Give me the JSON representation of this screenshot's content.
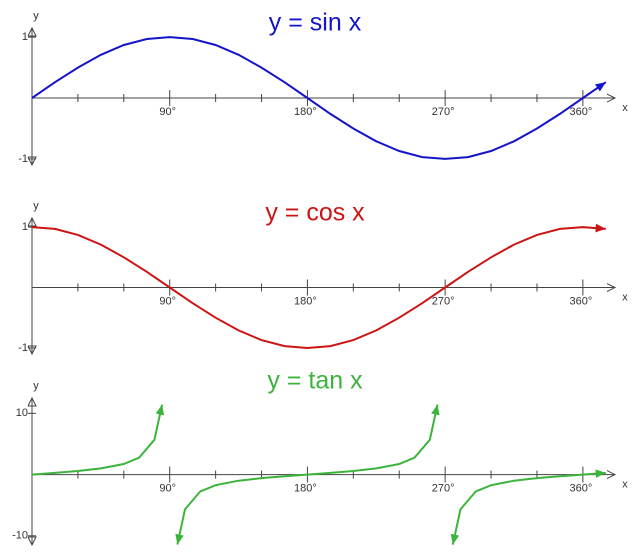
{
  "chart_data": [
    {
      "type": "line",
      "title": "y = sin x",
      "y_label": "y",
      "x_label": "x",
      "x": [
        0,
        15,
        30,
        45,
        60,
        75,
        90,
        105,
        120,
        135,
        150,
        165,
        180,
        195,
        210,
        225,
        240,
        255,
        270,
        285,
        300,
        315,
        330,
        345,
        360,
        375
      ],
      "series": [
        {
          "color": "#1414c8",
          "values": [
            0,
            0.26,
            0.5,
            0.71,
            0.87,
            0.97,
            1,
            0.97,
            0.87,
            0.71,
            0.5,
            0.26,
            0,
            -0.26,
            -0.5,
            -0.71,
            -0.87,
            -0.97,
            -1,
            -0.97,
            -0.87,
            -0.71,
            -0.5,
            -0.26,
            0,
            0.26
          ]
        }
      ],
      "xlim": [
        0,
        381
      ],
      "ylim": [
        -1.1,
        1.15
      ],
      "xticks": [
        {
          "value": 90,
          "label": "90°"
        },
        {
          "value": 180,
          "label": "180°"
        },
        {
          "value": 270,
          "label": "270°"
        },
        {
          "value": 360,
          "label": "360°"
        }
      ],
      "xminorticks": [
        30,
        60,
        120,
        150,
        210,
        240,
        300,
        330
      ],
      "yticks": [
        1,
        -1
      ]
    },
    {
      "type": "line",
      "title": "y = cos x",
      "y_label": "y",
      "x_label": "x",
      "x": [
        0,
        15,
        30,
        45,
        60,
        75,
        90,
        105,
        120,
        135,
        150,
        165,
        180,
        195,
        210,
        225,
        240,
        255,
        270,
        285,
        300,
        315,
        330,
        345,
        360,
        375
      ],
      "series": [
        {
          "color": "#cc1414",
          "values": [
            1,
            0.97,
            0.87,
            0.71,
            0.5,
            0.26,
            0,
            -0.26,
            -0.5,
            -0.71,
            -0.87,
            -0.97,
            -1,
            -0.97,
            -0.87,
            -0.71,
            -0.5,
            -0.26,
            0,
            0.26,
            0.5,
            0.71,
            0.87,
            0.97,
            1,
            0.97
          ]
        }
      ],
      "xlim": [
        0,
        381
      ],
      "ylim": [
        -1.1,
        1.15
      ],
      "xticks": [
        {
          "value": 90,
          "label": "90°"
        },
        {
          "value": 180,
          "label": "180°"
        },
        {
          "value": 270,
          "label": "270°"
        },
        {
          "value": 360,
          "label": "360°"
        }
      ],
      "xminorticks": [
        30,
        60,
        120,
        150,
        210,
        240,
        300,
        330
      ],
      "yticks": [
        1,
        -1
      ]
    },
    {
      "type": "line",
      "title": "y = tan x",
      "y_label": "y",
      "x_label": "x",
      "x": [
        0,
        15,
        30,
        45,
        60,
        70,
        80,
        85,
        90,
        95,
        100,
        110,
        120,
        135,
        150,
        165,
        180,
        195,
        210,
        225,
        240,
        250,
        260,
        265,
        270,
        275,
        280,
        290,
        300,
        315,
        330,
        345,
        360,
        375
      ],
      "series": [
        {
          "color": "#3cb43c",
          "values": [
            0,
            0.27,
            0.58,
            1,
            1.73,
            2.75,
            5.67,
            11.43,
            null,
            -11.43,
            -5.67,
            -2.75,
            -1.73,
            -1,
            -0.58,
            -0.27,
            0,
            0.27,
            0.58,
            1,
            1.73,
            2.75,
            5.67,
            11.43,
            null,
            -11.43,
            -5.67,
            -2.75,
            -1.73,
            -1,
            -0.58,
            -0.27,
            0,
            0.27
          ]
        }
      ],
      "xlim": [
        0,
        381
      ],
      "ylim": [
        -11.5,
        12.5
      ],
      "xticks": [
        {
          "value": 90,
          "label": "90°"
        },
        {
          "value": 180,
          "label": "180°"
        },
        {
          "value": 270,
          "label": "270°"
        },
        {
          "value": 360,
          "label": "360°"
        }
      ],
      "xminorticks": [
        30,
        60,
        120,
        150,
        210,
        240,
        300,
        330
      ],
      "yticks": [
        10,
        -10
      ]
    }
  ]
}
